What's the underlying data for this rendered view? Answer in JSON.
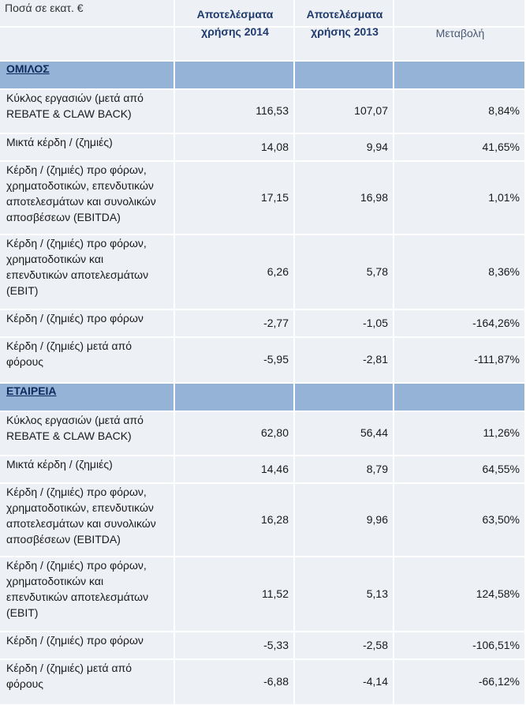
{
  "header": {
    "unit": "Ποσά σε εκατ. €",
    "columns": [
      [
        "Αποτελέσματα",
        "χρήσης 2014"
      ],
      [
        "Αποτελέσματα",
        "χρήσης 2013"
      ],
      [
        "Μεταβολή"
      ]
    ]
  },
  "sections": [
    {
      "name": "ΟΜΙΛΟΣ",
      "rows": [
        {
          "label": [
            "Κύκλος εργασιών (μετά από",
            "REBATE & CLAW BACK)"
          ],
          "values": [
            "116,53",
            "107,07",
            "8,84%"
          ]
        },
        {
          "label": [
            "Μικτά κέρδη / (ζημιές)"
          ],
          "values": [
            "14,08",
            "9,94",
            "41,65%"
          ]
        },
        {
          "label": [
            "Κέρδη / (ζημιές) προ φόρων,",
            "χρηματοδοτικών, επενδυτικών",
            "αποτελεσμάτων και συνολικών",
            "αποσβέσεων (EBITDA)"
          ],
          "values": [
            "17,15",
            "16,98",
            "1,01%"
          ]
        },
        {
          "label": [
            "Κέρδη / (ζημιές) προ φόρων,",
            "χρηματοδοτικών και",
            "επενδυτικών αποτελεσμάτων",
            "(EBIT)"
          ],
          "values": [
            "6,26",
            "5,78",
            "8,36%"
          ]
        },
        {
          "label": [
            "Κέρδη / (ζημιές) προ φόρων"
          ],
          "values": [
            "-2,77",
            "-1,05",
            "-164,26%"
          ]
        },
        {
          "label": [
            "Κέρδη / (ζημιές) μετά από",
            "φόρους"
          ],
          "values": [
            "-5,95",
            "-2,81",
            "-111,87%"
          ]
        }
      ]
    },
    {
      "name": "ΕΤΑΙΡΕΙΑ",
      "rows": [
        {
          "label": [
            "Κύκλος εργασιών (μετά από",
            "REBATE & CLAW BACK)"
          ],
          "values": [
            "62,80",
            "56,44",
            "11,26%"
          ]
        },
        {
          "label": [
            "Μικτά κέρδη / (ζημιές)"
          ],
          "values": [
            "14,46",
            "8,79",
            "64,55%"
          ]
        },
        {
          "label": [
            "Κέρδη / (ζημιές) προ φόρων,",
            "χρηματοδοτικών, επενδυτικών",
            "αποτελεσμάτων και συνολικών",
            "αποσβέσεων (EBITDA)"
          ],
          "values": [
            "16,28",
            "9,96",
            "63,50%"
          ]
        },
        {
          "label": [
            "Κέρδη / (ζημιές) προ φόρων,",
            "χρηματοδοτικών και",
            "επενδυτικών αποτελεσμάτων",
            "(EBIT)"
          ],
          "values": [
            "11,52",
            "5,13",
            "124,58%"
          ]
        },
        {
          "label": [
            "Κέρδη / (ζημιές) προ φόρων"
          ],
          "values": [
            "-5,33",
            "-2,58",
            "-106,51%"
          ]
        },
        {
          "label": [
            "Κέρδη / (ζημιές) μετά από",
            "φόρους"
          ],
          "values": [
            "-6,88",
            "-4,14",
            "-66,12%"
          ]
        }
      ]
    }
  ]
}
